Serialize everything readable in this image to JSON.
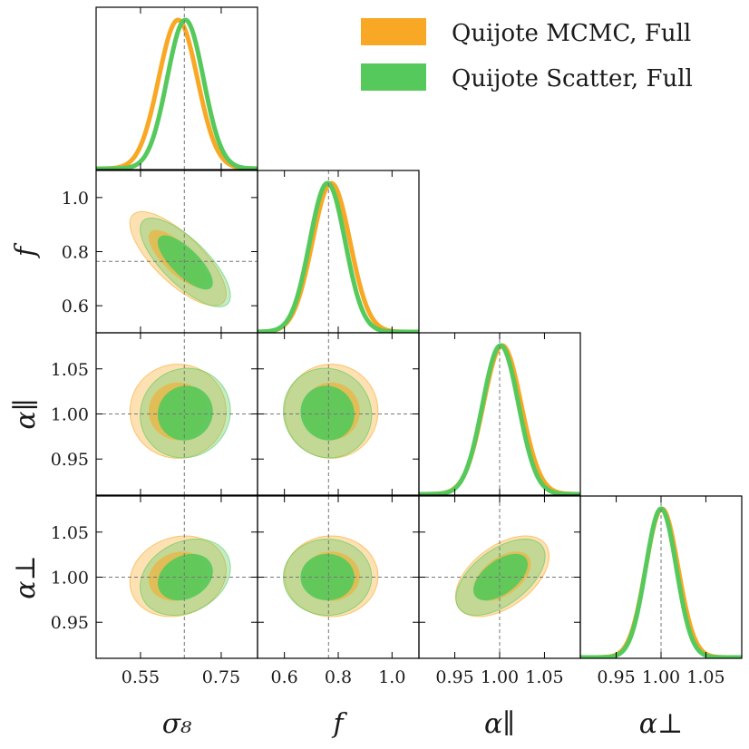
{
  "chart_data": {
    "type": "corner",
    "params": [
      {
        "key": "s8",
        "label": "σ₈",
        "ticks": [
          0.55,
          0.75
        ],
        "tick_labels": [
          "0.55",
          "0.75"
        ],
        "range": [
          0.44,
          0.84
        ],
        "fiducial": 0.6586
      },
      {
        "key": "f",
        "label": "f",
        "ticks": [
          0.6,
          0.8,
          1.0
        ],
        "tick_labels": [
          "0.6",
          "0.8",
          "1.0"
        ],
        "range": [
          0.5,
          1.1
        ],
        "fiducial": 0.764
      },
      {
        "key": "apar",
        "label": "α∥",
        "ticks": [
          0.95,
          1.0,
          1.05
        ],
        "tick_labels": [
          "0.95",
          "1.00",
          "1.05"
        ],
        "range": [
          0.91,
          1.09
        ],
        "fiducial": 1.0
      },
      {
        "key": "aperp",
        "label": "α⊥",
        "ticks": [
          0.95,
          1.0,
          1.05
        ],
        "tick_labels": [
          "0.95",
          "1.00",
          "1.05"
        ],
        "range": [
          0.91,
          1.09
        ],
        "fiducial": 1.0
      }
    ],
    "series": [
      {
        "name": "Quijote MCMC, Full",
        "color": "#f9a825",
        "means": {
          "s8": 0.643,
          "f": 0.774,
          "apar": 1.003,
          "aperp": 1.001
        },
        "sigmas": {
          "s8": 0.048,
          "f": 0.07,
          "apar": 0.021,
          "aperp": 0.018
        },
        "correlations": {
          "s8-f": -0.75,
          "s8-apar": 0.0,
          "f-apar": 0.0,
          "s8-aperp": 0.15,
          "f-aperp": 0.0,
          "apar-aperp": 0.5
        }
      },
      {
        "name": "Quijote Scatter, Full",
        "color": "#55c95b",
        "means": {
          "s8": 0.661,
          "f": 0.76,
          "apar": 1.001,
          "aperp": 1.0
        },
        "sigmas": {
          "s8": 0.045,
          "f": 0.066,
          "apar": 0.02,
          "aperp": 0.017
        },
        "correlations": {
          "s8-f": -0.75,
          "s8-apar": 0.05,
          "f-apar": -0.05,
          "s8-aperp": 0.25,
          "f-aperp": 0.0,
          "apar-aperp": 0.55
        }
      }
    ],
    "contour_levels": [
      "68%",
      "95%"
    ],
    "legend_position": "top-right",
    "axis_labels_x": [
      "σ₈",
      "f",
      "α∥",
      "α⊥"
    ],
    "axis_labels_y": [
      "f",
      "α∥",
      "α⊥"
    ]
  }
}
